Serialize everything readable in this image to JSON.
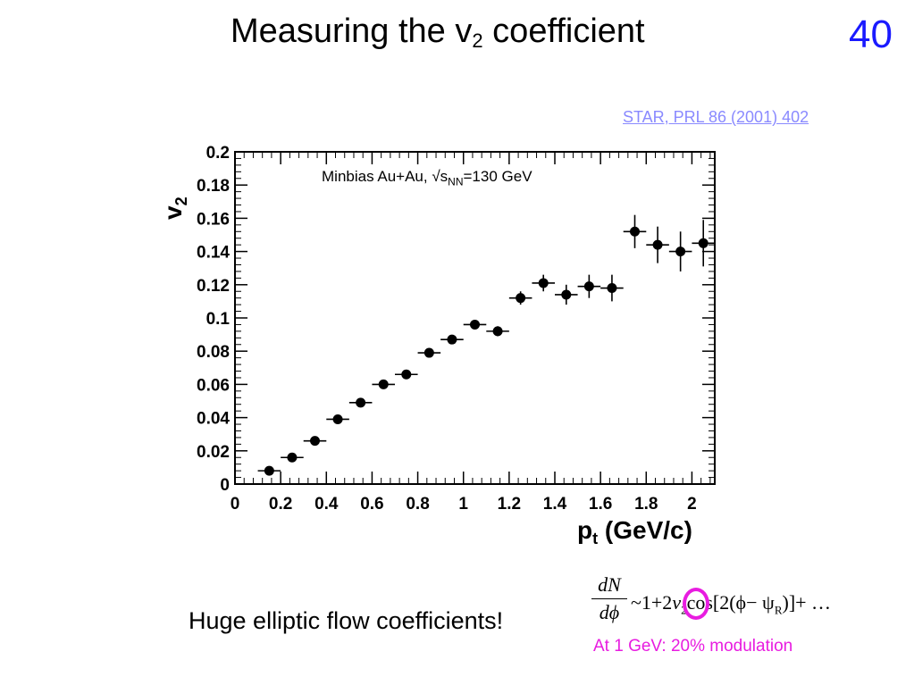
{
  "slide": {
    "title_main": "Measuring the v",
    "title_sub": "2",
    "title_rest": " coefficient",
    "number": "40",
    "reference": "STAR, PRL 86 (2001) 402",
    "caption": "Huge elliptic flow coefficients!",
    "modulation_note": "At 1 GeV: 20% modulation",
    "formula": {
      "num": "dN",
      "den": "dϕ",
      "rhs_a": "~1+2",
      "v": "v",
      "v_sub": "2",
      "rhs_b": "cos[2(ϕ− ψ",
      "psi_sub": "R",
      "rhs_c": ")]+ …"
    },
    "highlight_color": "#e81ce0",
    "number_color": "#1a1aff",
    "reference_color": "#8a8aff"
  },
  "chart_data": {
    "type": "scatter",
    "annotation": {
      "prefix": "Minbias Au+Au, √s",
      "sub": "NN",
      "suffix": "=130 GeV"
    },
    "xlabel_main": "p",
    "xlabel_sub": "t",
    "xlabel_rest": " (GeV/c)",
    "ylabel_main": "v",
    "ylabel_sub": "2",
    "xlim": [
      0,
      2.1
    ],
    "ylim": [
      0,
      0.2
    ],
    "xticks": [
      "0",
      "0.2",
      "0.4",
      "0.6",
      "0.8",
      "1",
      "1.2",
      "1.4",
      "1.6",
      "1.8",
      "2"
    ],
    "yticks": [
      "0",
      "0.02",
      "0.04",
      "0.06",
      "0.08",
      "0.1",
      "0.12",
      "0.14",
      "0.16",
      "0.18",
      "0.2"
    ],
    "grid": false,
    "series": [
      {
        "x": [
          0.15,
          0.25,
          0.35,
          0.45,
          0.55,
          0.65,
          0.75,
          0.85,
          0.95,
          1.05,
          1.15,
          1.25,
          1.35,
          1.45,
          1.55,
          1.65,
          1.75,
          1.85,
          1.95,
          2.05
        ],
        "y": [
          0.008,
          0.016,
          0.026,
          0.039,
          0.049,
          0.06,
          0.066,
          0.079,
          0.087,
          0.096,
          0.092,
          0.112,
          0.121,
          0.114,
          0.119,
          0.118,
          0.152,
          0.144,
          0.14,
          0.145
        ],
        "yerr": [
          0.001,
          0.001,
          0.001,
          0.001,
          0.001,
          0.001,
          0.001,
          0.001,
          0.002,
          0.002,
          0.003,
          0.004,
          0.005,
          0.006,
          0.007,
          0.008,
          0.01,
          0.011,
          0.012,
          0.014
        ],
        "xerr": [
          0.05,
          0.05,
          0.05,
          0.05,
          0.05,
          0.05,
          0.05,
          0.05,
          0.05,
          0.05,
          0.05,
          0.05,
          0.05,
          0.05,
          0.05,
          0.05,
          0.05,
          0.05,
          0.05,
          0.05
        ]
      }
    ]
  }
}
